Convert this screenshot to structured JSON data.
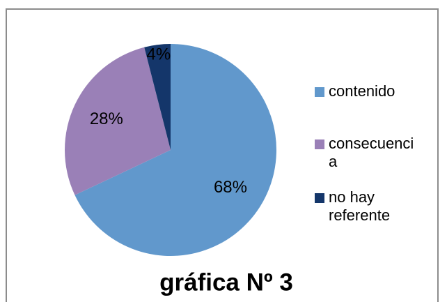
{
  "chart_data": {
    "type": "pie",
    "title": "gráfica Nº 3",
    "categories": [
      "contenido",
      "consecuencia",
      "no hay referente"
    ],
    "values": [
      68,
      28,
      4
    ],
    "value_labels": [
      "68%",
      "28%",
      "4%"
    ],
    "colors": [
      "#6198cc",
      "#9a80b7",
      "#14366a"
    ],
    "legend": "right"
  }
}
